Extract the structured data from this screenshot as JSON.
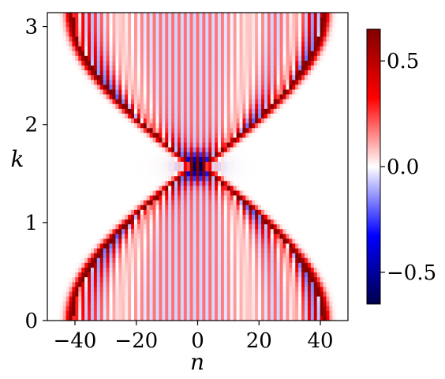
{
  "chart_data": {
    "type": "heatmap",
    "title": "",
    "xlabel": "n",
    "ylabel": "k",
    "xlim": [
      -49,
      49
    ],
    "ylim": [
      0,
      3.1416
    ],
    "xticks": [
      -40,
      -20,
      0,
      20,
      40
    ],
    "xtick_labels": [
      "−40",
      "−20",
      "0",
      "20",
      "40"
    ],
    "yticks": [
      0,
      1,
      2,
      3
    ],
    "ytick_labels": [
      "0",
      "1",
      "2",
      "3"
    ],
    "grid": false,
    "n_columns": 97,
    "n_rows": 64,
    "colormap": "seismic",
    "colorbar": {
      "vmin": -0.65,
      "vmax": 0.65,
      "ticks": [
        0.5,
        0.0,
        -0.5
      ],
      "tick_labels": [
        "0.5",
        "0.0",
        "−0.5"
      ]
    },
    "description_of_field": "oscillating wave packet; front |n| ≈ 40|cos k|, crossing at n=0, k≈π/2"
  },
  "colors": {
    "negative_extreme": "#00004c",
    "negative": "#0000ff",
    "zero": "#ffffff",
    "positive": "#ff0000",
    "positive_extreme": "#800000"
  }
}
